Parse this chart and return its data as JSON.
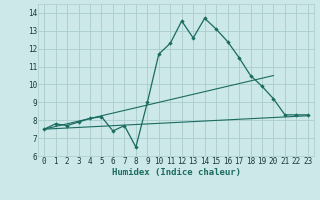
{
  "xlabel": "Humidex (Indice chaleur)",
  "xlim": [
    -0.5,
    23.5
  ],
  "ylim": [
    6,
    14.5
  ],
  "yticks": [
    6,
    7,
    8,
    9,
    10,
    11,
    12,
    13,
    14
  ],
  "xticks": [
    0,
    1,
    2,
    3,
    4,
    5,
    6,
    7,
    8,
    9,
    10,
    11,
    12,
    13,
    14,
    15,
    16,
    17,
    18,
    19,
    20,
    21,
    22,
    23
  ],
  "bg_color": "#cce8e8",
  "grid_color": "#aacccc",
  "line_color": "#1a6b60",
  "line1_x": [
    0,
    1,
    2,
    3,
    4,
    5,
    6,
    7,
    8,
    9,
    10,
    11,
    12,
    13,
    14,
    15,
    16,
    17,
    18,
    19,
    20,
    21,
    22,
    23
  ],
  "line1_y": [
    7.5,
    7.8,
    7.7,
    7.9,
    8.1,
    8.2,
    7.4,
    7.7,
    6.5,
    9.0,
    11.7,
    12.3,
    13.55,
    12.6,
    13.7,
    13.1,
    12.4,
    11.5,
    10.5,
    9.9,
    9.2,
    8.3,
    8.3,
    8.3
  ],
  "line2_x": [
    0,
    23
  ],
  "line2_y": [
    7.5,
    8.25
  ],
  "line3_x": [
    0,
    20
  ],
  "line3_y": [
    7.5,
    10.5
  ]
}
